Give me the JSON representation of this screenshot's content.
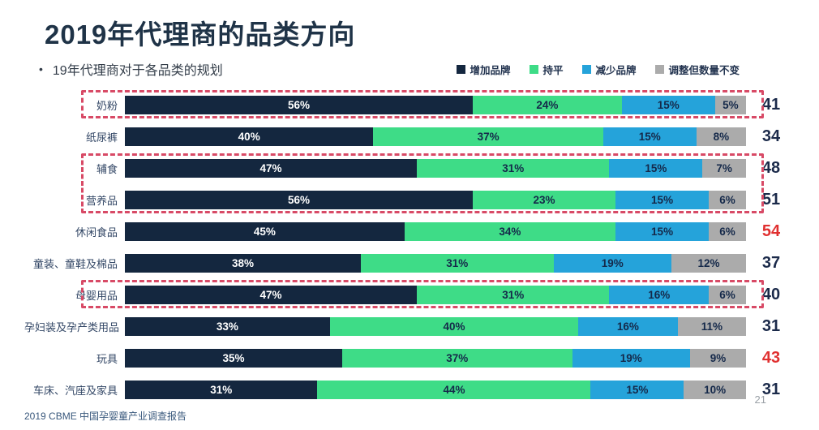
{
  "slide": {
    "title": "2019年代理商的品类方向",
    "bullet": "•",
    "subtitle": "19年代理商对于各品类的规划",
    "footer": "2019 CBME 中国孕婴童产业调查报告",
    "page_number": "21"
  },
  "colors": {
    "title_navy": "#1f3347",
    "dash_box_red": "#d84a66",
    "total_default": "#1b2a4a",
    "total_highlight_red": "#e03030",
    "segment_text_on_dark": "#ffffff",
    "segment_text_on_light": "#15294a"
  },
  "chart_data": {
    "type": "bar",
    "subtype": "horizontal-stacked",
    "unit": "%",
    "legend_position": "top-right",
    "grid": false,
    "categories": [
      "奶粉",
      "纸尿裤",
      "辅食",
      "营养品",
      "休闲食品",
      "童装、童鞋及棉品",
      "母婴用品",
      "孕妇装及孕产类用品",
      "玩具",
      "车床、汽座及家具"
    ],
    "series": [
      {
        "name": "增加品牌",
        "color": "#14273f",
        "values": [
          56,
          40,
          47,
          56,
          45,
          38,
          47,
          33,
          35,
          31
        ]
      },
      {
        "name": "持平",
        "color": "#3edc87",
        "values": [
          24,
          37,
          31,
          23,
          34,
          31,
          31,
          40,
          37,
          44
        ]
      },
      {
        "name": "减少品牌",
        "color": "#25a3da",
        "values": [
          15,
          15,
          15,
          15,
          15,
          19,
          16,
          16,
          19,
          15
        ]
      },
      {
        "name": "调整但数量不变",
        "color": "#ababab",
        "values": [
          5,
          8,
          7,
          6,
          6,
          12,
          6,
          11,
          9,
          10
        ]
      }
    ],
    "totals": [
      41,
      34,
      48,
      51,
      54,
      37,
      40,
      31,
      43,
      31
    ],
    "totals_red": [
      false,
      false,
      false,
      false,
      true,
      false,
      false,
      false,
      true,
      false
    ],
    "highlight_boxes": [
      {
        "start_row": 0,
        "end_row": 0
      },
      {
        "start_row": 2,
        "end_row": 3
      },
      {
        "start_row": 6,
        "end_row": 6
      }
    ]
  }
}
